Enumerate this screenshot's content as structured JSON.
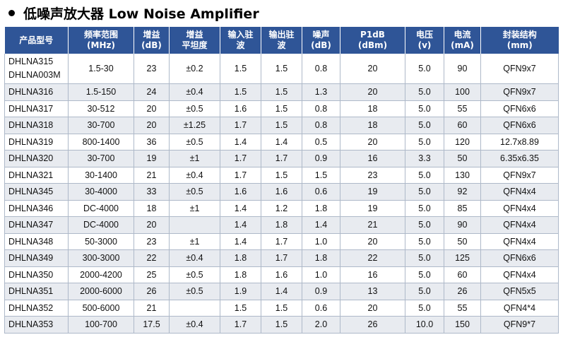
{
  "title": "低噪声放大器 Low Noise Amplifier",
  "columns": [
    [
      "产品型号"
    ],
    [
      "频率范围",
      "(MHz)"
    ],
    [
      "增益",
      "(dB)"
    ],
    [
      "增益",
      "平坦度"
    ],
    [
      "输入驻",
      "波"
    ],
    [
      "输出驻",
      "波"
    ],
    [
      "噪声",
      "(dB)"
    ],
    [
      "P1dB",
      "(dBm)"
    ],
    [
      "电压",
      "(v)"
    ],
    [
      "电流",
      "(mA)"
    ],
    [
      "封装结构",
      "(mm)"
    ]
  ],
  "rows": [
    [
      "DHLNA315\nDHLNA003M",
      "1.5-30",
      "23",
      "±0.2",
      "1.5",
      "1.5",
      "0.8",
      "20",
      "5.0",
      "90",
      "QFN9x7"
    ],
    [
      "DHLNA316",
      "1.5-150",
      "24",
      "±0.4",
      "1.5",
      "1.5",
      "1.3",
      "20",
      "5.0",
      "100",
      "QFN9x7"
    ],
    [
      "DHLNA317",
      "30-512",
      "20",
      "±0.5",
      "1.6",
      "1.5",
      "0.8",
      "18",
      "5.0",
      "55",
      "QFN6x6"
    ],
    [
      "DHLNA318",
      "30-700",
      "20",
      "±1.25",
      "1.7",
      "1.5",
      "0.8",
      "18",
      "5.0",
      "60",
      "QFN6x6"
    ],
    [
      "DHLNA319",
      "800-1400",
      "36",
      "±0.5",
      "1.4",
      "1.4",
      "0.5",
      "20",
      "5.0",
      "120",
      "12.7x8.89"
    ],
    [
      "DHLNA320",
      "30-700",
      "19",
      "±1",
      "1.7",
      "1.7",
      "0.9",
      "16",
      "3.3",
      "50",
      "6.35x6.35"
    ],
    [
      "DHLNA321",
      "30-1400",
      "21",
      "±0.4",
      "1.7",
      "1.5",
      "1.5",
      "23",
      "5.0",
      "130",
      "QFN9x7"
    ],
    [
      "DHLNA345",
      "30-4000",
      "33",
      "±0.5",
      "1.6",
      "1.6",
      "0.6",
      "19",
      "5.0",
      "92",
      "QFN4x4"
    ],
    [
      "DHLNA346",
      "DC-4000",
      "18",
      "±1",
      "1.4",
      "1.2",
      "1.8",
      "19",
      "5.0",
      "85",
      "QFN4x4"
    ],
    [
      "DHLNA347",
      "DC-4000",
      "20",
      "",
      "1.4",
      "1.8",
      "1.4",
      "21",
      "5.0",
      "90",
      "QFN4x4"
    ],
    [
      "DHLNA348",
      "50-3000",
      "23",
      "±1",
      "1.4",
      "1.7",
      "1.0",
      "20",
      "5.0",
      "50",
      "QFN4x4"
    ],
    [
      "DHLNA349",
      "300-3000",
      "22",
      "±0.4",
      "1.8",
      "1.7",
      "1.8",
      "22",
      "5.0",
      "125",
      "QFN6x6"
    ],
    [
      "DHLNA350",
      "2000-4200",
      "25",
      "±0.5",
      "1.8",
      "1.6",
      "1.0",
      "16",
      "5.0",
      "60",
      "QFN4x4"
    ],
    [
      "DHLNA351",
      "2000-6000",
      "26",
      "±0.5",
      "1.9",
      "1.4",
      "0.9",
      "13",
      "5.0",
      "26",
      "QFN5x5"
    ],
    [
      "DHLNA352",
      "500-6000",
      "21",
      "",
      "1.5",
      "1.5",
      "0.6",
      "20",
      "5.0",
      "55",
      "QFN4*4"
    ],
    [
      "DHLNA353",
      "100-700",
      "17.5",
      "±0.4",
      "1.7",
      "1.5",
      "2.0",
      "26",
      "10.0",
      "150",
      "QFN9*7"
    ]
  ],
  "colors": {
    "header_bg": "#2f5597",
    "stripe": "#e8ebf0",
    "grid": "#aeb9c9"
  }
}
